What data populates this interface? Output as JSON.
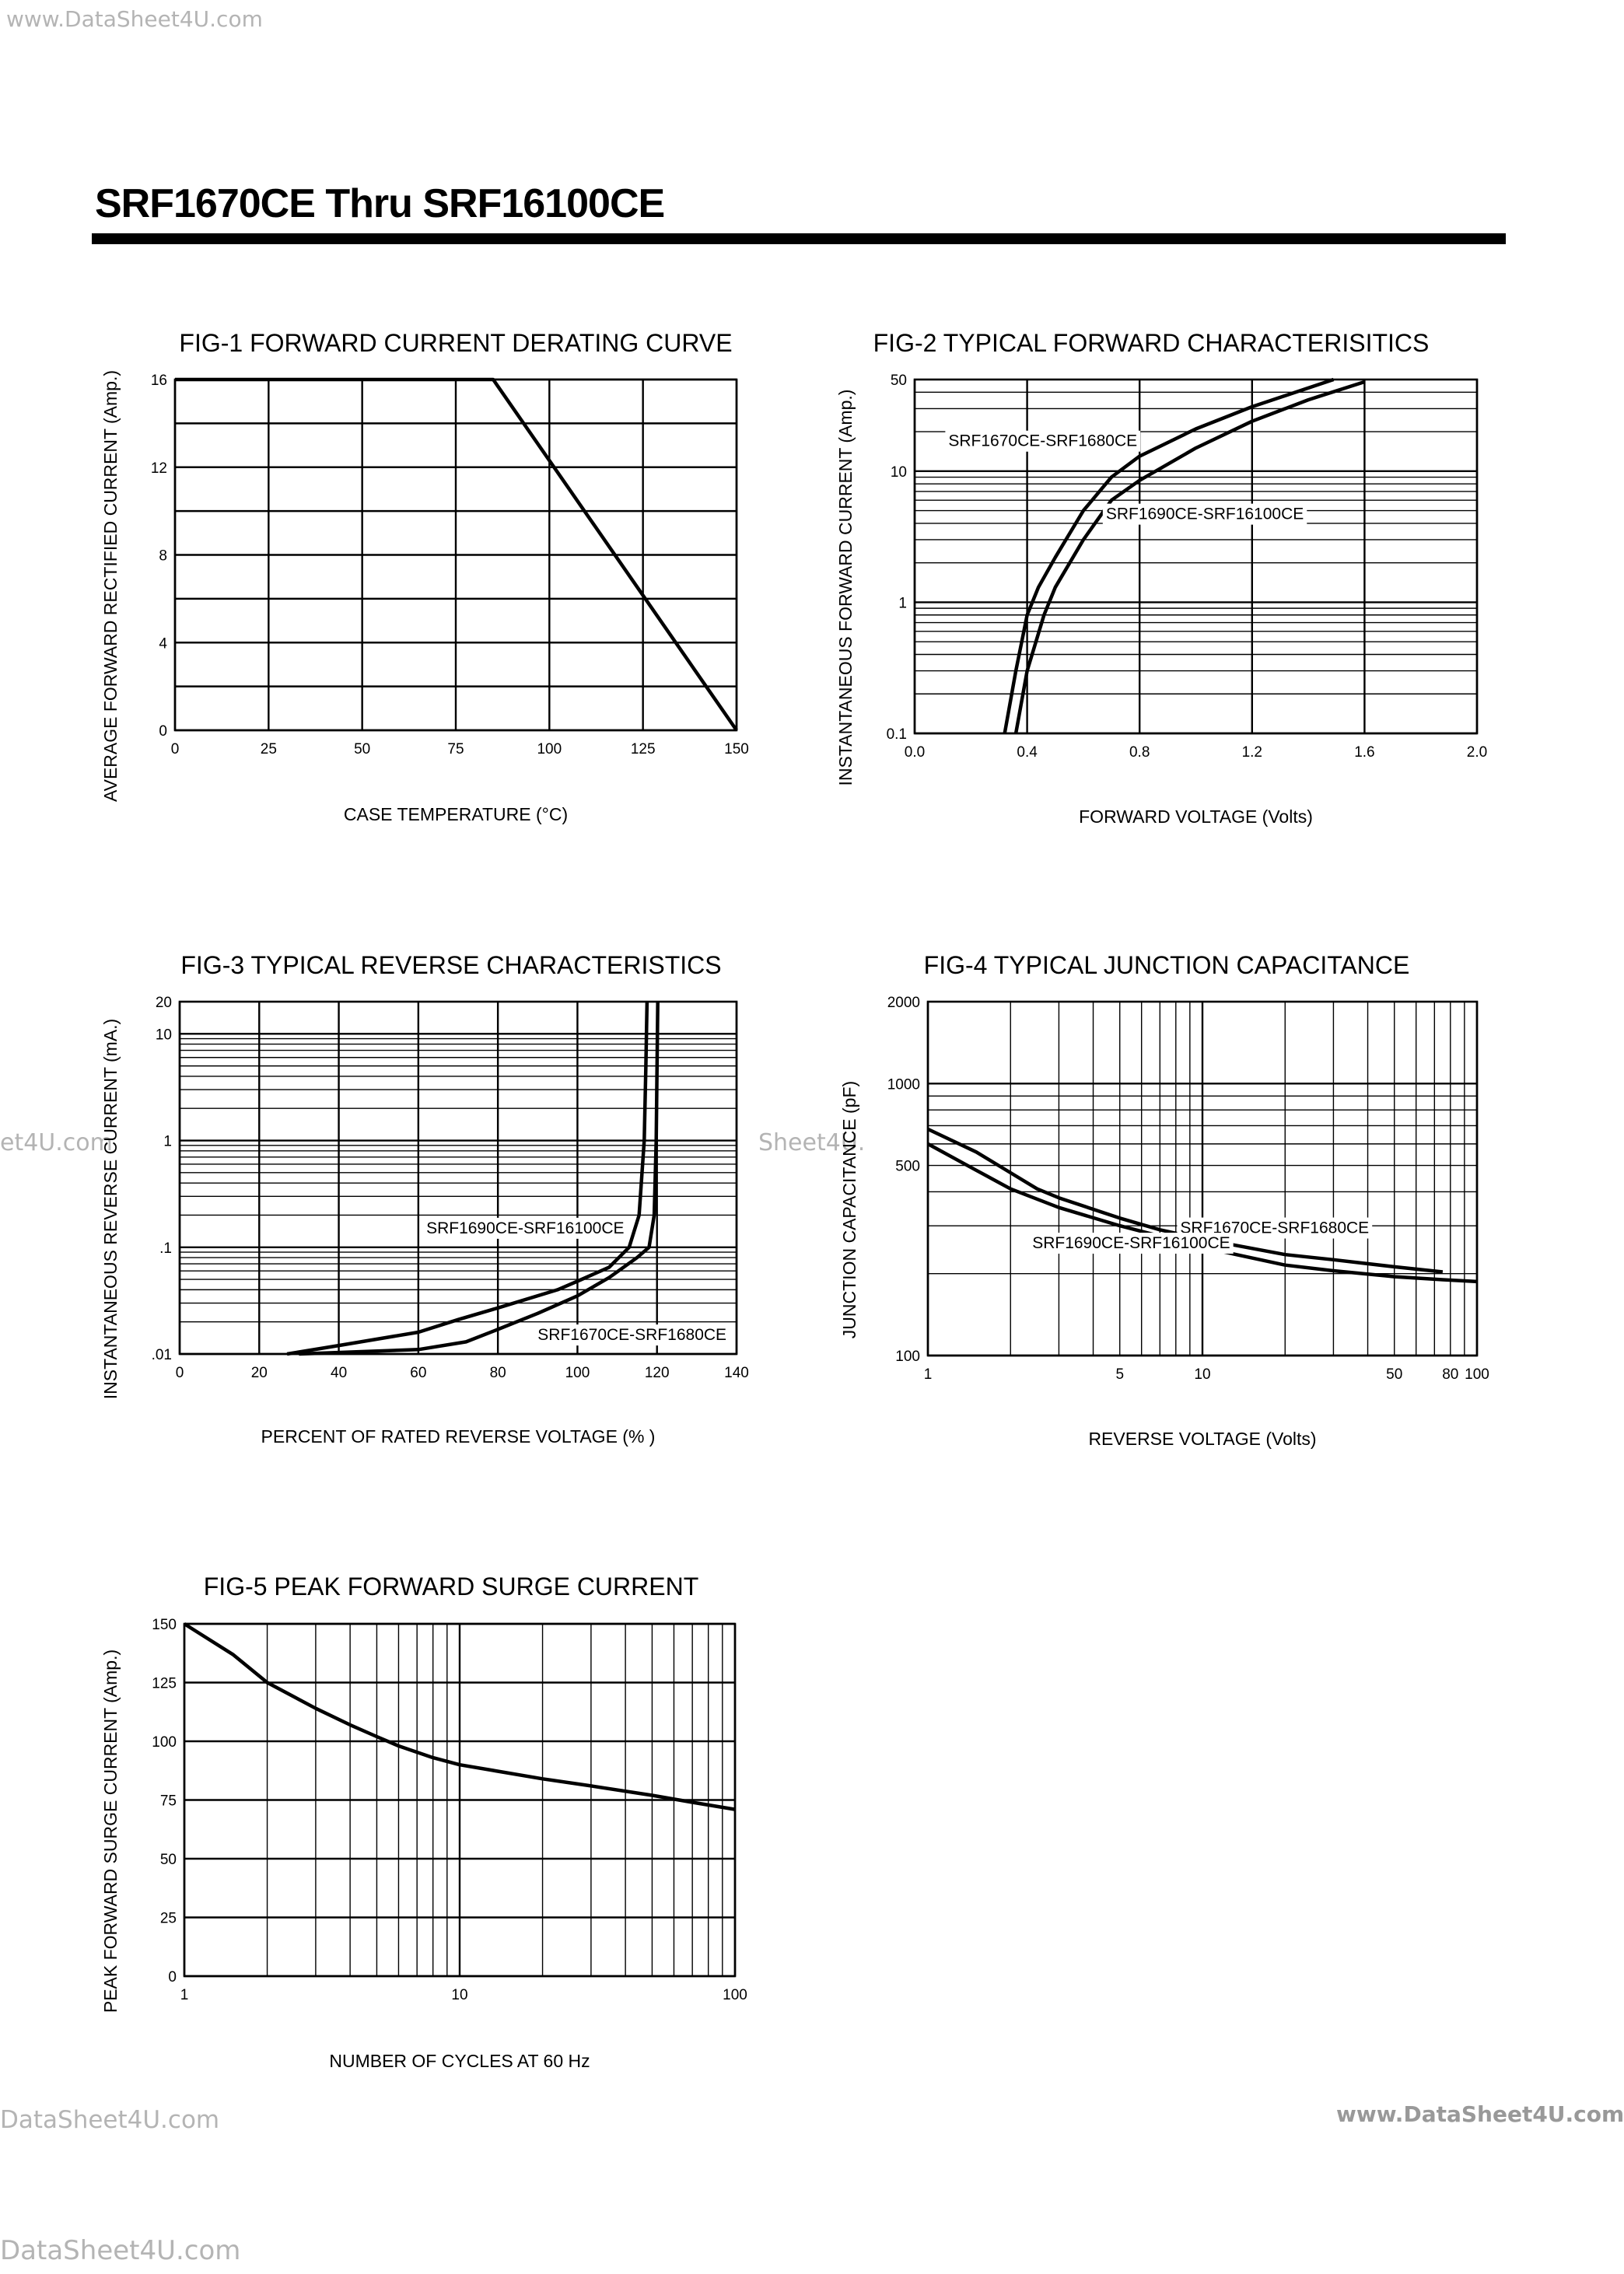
{
  "watermarks": {
    "top_left": "www.DataSheet4U.com",
    "side_left": "et4U.com",
    "side_mid": "Sheet4U.",
    "bottom_left": "DataSheet4U.com",
    "bottom_right": "www.DataSheet4U.com",
    "footer": "DataSheet4U.com"
  },
  "header": {
    "title": "SRF1670CE Thru SRF16100CE"
  },
  "chart_data": [
    {
      "type": "line",
      "title": "FIG-1 FORWARD CURRENT DERATING CURVE",
      "xlabel": "CASE TEMPERATURE (°C)",
      "ylabel": "AVERAGE FORWARD RECTIFIED CURRENT (Amp.)",
      "xscale": "linear",
      "yscale": "linear",
      "xlim": [
        0,
        150
      ],
      "ylim": [
        0,
        16
      ],
      "xticks": [
        "0",
        "25",
        "50",
        "75",
        "100",
        "125",
        "150"
      ],
      "yticks": [
        "0",
        "4",
        "8",
        "12",
        "16"
      ],
      "grid": true,
      "series": [
        {
          "x": [
            0,
            85,
            150
          ],
          "y": [
            16,
            16,
            0
          ]
        }
      ]
    },
    {
      "type": "line",
      "title": "FIG-2 TYPICAL FORWARD CHARACTERISITICS",
      "xlabel": "FORWARD VOLTAGE (Volts)",
      "ylabel": "INSTANTANEOUS FORWARD CURRENT (Amp.)",
      "xscale": "linear",
      "yscale": "log",
      "xlim": [
        0,
        2.0
      ],
      "ylim": [
        0.1,
        50
      ],
      "xticks": [
        "0.0",
        "0.4",
        "0.8",
        "1.2",
        "1.6",
        "2.0"
      ],
      "yticks": [
        "0.1",
        "1",
        "10",
        "50"
      ],
      "grid": true,
      "series": [
        {
          "name": "SRF1670CE-SRF1680CE",
          "x": [
            0.32,
            0.36,
            0.4,
            0.44,
            0.5,
            0.6,
            0.7,
            0.8,
            1.0,
            1.2,
            1.49
          ],
          "y": [
            0.1,
            0.3,
            0.8,
            1.3,
            2.2,
            5,
            9,
            13,
            21,
            31,
            50
          ]
        },
        {
          "name": "SRF1690CE-SRF16100CE",
          "x": [
            0.36,
            0.4,
            0.46,
            0.5,
            0.6,
            0.7,
            0.8,
            1.0,
            1.2,
            1.4,
            1.6
          ],
          "y": [
            0.1,
            0.3,
            0.8,
            1.3,
            3,
            6,
            8.5,
            15,
            24,
            35,
            48
          ]
        }
      ]
    },
    {
      "type": "line",
      "title": "FIG-3 TYPICAL REVERSE CHARACTERISTICS",
      "xlabel": "PERCENT OF RATED REVERSE VOLTAGE (%  )",
      "ylabel": "INSTANTANEOUS REVERSE CURRENT (mA.)",
      "xscale": "linear",
      "yscale": "log",
      "xlim": [
        0,
        140
      ],
      "ylim": [
        0.01,
        20
      ],
      "xticks": [
        "0",
        "20",
        "40",
        "60",
        "80",
        "100",
        "120",
        "140"
      ],
      "yticks": [
        ".01",
        ".1",
        "1",
        "10",
        "20"
      ],
      "grid": true,
      "series": [
        {
          "name": "SRF1690CE-SRF16100CE",
          "x": [
            27,
            40,
            60,
            70,
            80,
            95,
            100,
            108,
            113,
            115.5,
            116.8,
            117.2,
            117.5
          ],
          "y": [
            0.01,
            0.012,
            0.016,
            0.021,
            0.027,
            0.04,
            0.048,
            0.065,
            0.1,
            0.2,
            1,
            5,
            20
          ]
        },
        {
          "name": "SRF1670CE-SRF1680CE",
          "x": [
            30,
            45,
            60,
            72,
            80,
            90,
            100,
            108,
            115,
            118,
            119.3,
            119.8,
            120.2
          ],
          "y": [
            0.01,
            0.0105,
            0.011,
            0.013,
            0.017,
            0.024,
            0.035,
            0.052,
            0.08,
            0.1,
            0.2,
            1,
            20
          ]
        }
      ]
    },
    {
      "type": "line",
      "title": "FIG-4 TYPICAL JUNCTION CAPACITANCE",
      "xlabel": "REVERSE VOLTAGE (Volts)",
      "ylabel": "JUNCTION CAPACITANCE (pF)",
      "xscale": "log",
      "yscale": "log",
      "xlim": [
        1,
        100
      ],
      "ylim": [
        100,
        2000
      ],
      "xticks": [
        "1",
        "5",
        "10",
        "50",
        "80",
        "100"
      ],
      "yticks": [
        "100",
        "500",
        "1000",
        "2000"
      ],
      "grid": true,
      "series": [
        {
          "name": "SRF1670CE-SRF1680CE",
          "x": [
            1,
            1.5,
            2,
            2.5,
            3,
            5,
            7,
            10,
            20,
            30,
            50,
            75
          ],
          "y": [
            680,
            560,
            470,
            410,
            380,
            320,
            290,
            268,
            235,
            225,
            212,
            203
          ]
        },
        {
          "name": "SRF1690CE-SRF16100CE",
          "x": [
            1,
            1.5,
            2,
            3,
            5,
            7,
            10,
            20,
            30,
            50,
            75,
            100
          ],
          "y": [
            600,
            480,
            410,
            350,
            300,
            275,
            250,
            215,
            205,
            195,
            190,
            187
          ]
        }
      ]
    },
    {
      "type": "line",
      "title": "FIG-5 PEAK FORWARD SURGE CURRENT",
      "xlabel": "NUMBER OF CYCLES AT 60 Hz",
      "ylabel": "PEAK FORWARD SURGE    CURRENT (Amp.)",
      "xscale": "log",
      "yscale": "linear",
      "xlim": [
        1,
        100
      ],
      "ylim": [
        0,
        150
      ],
      "xticks": [
        "1",
        "10",
        "100"
      ],
      "yticks": [
        "0",
        "25",
        "50",
        "75",
        "100",
        "125",
        "150"
      ],
      "grid": true,
      "series": [
        {
          "x": [
            1,
            1.5,
            2,
            3,
            4,
            5,
            6,
            8,
            10,
            20,
            30,
            50,
            70,
            100
          ],
          "y": [
            150,
            137,
            125,
            114,
            107,
            102,
            98,
            93,
            90,
            84,
            81,
            77,
            74,
            71
          ]
        }
      ]
    }
  ]
}
